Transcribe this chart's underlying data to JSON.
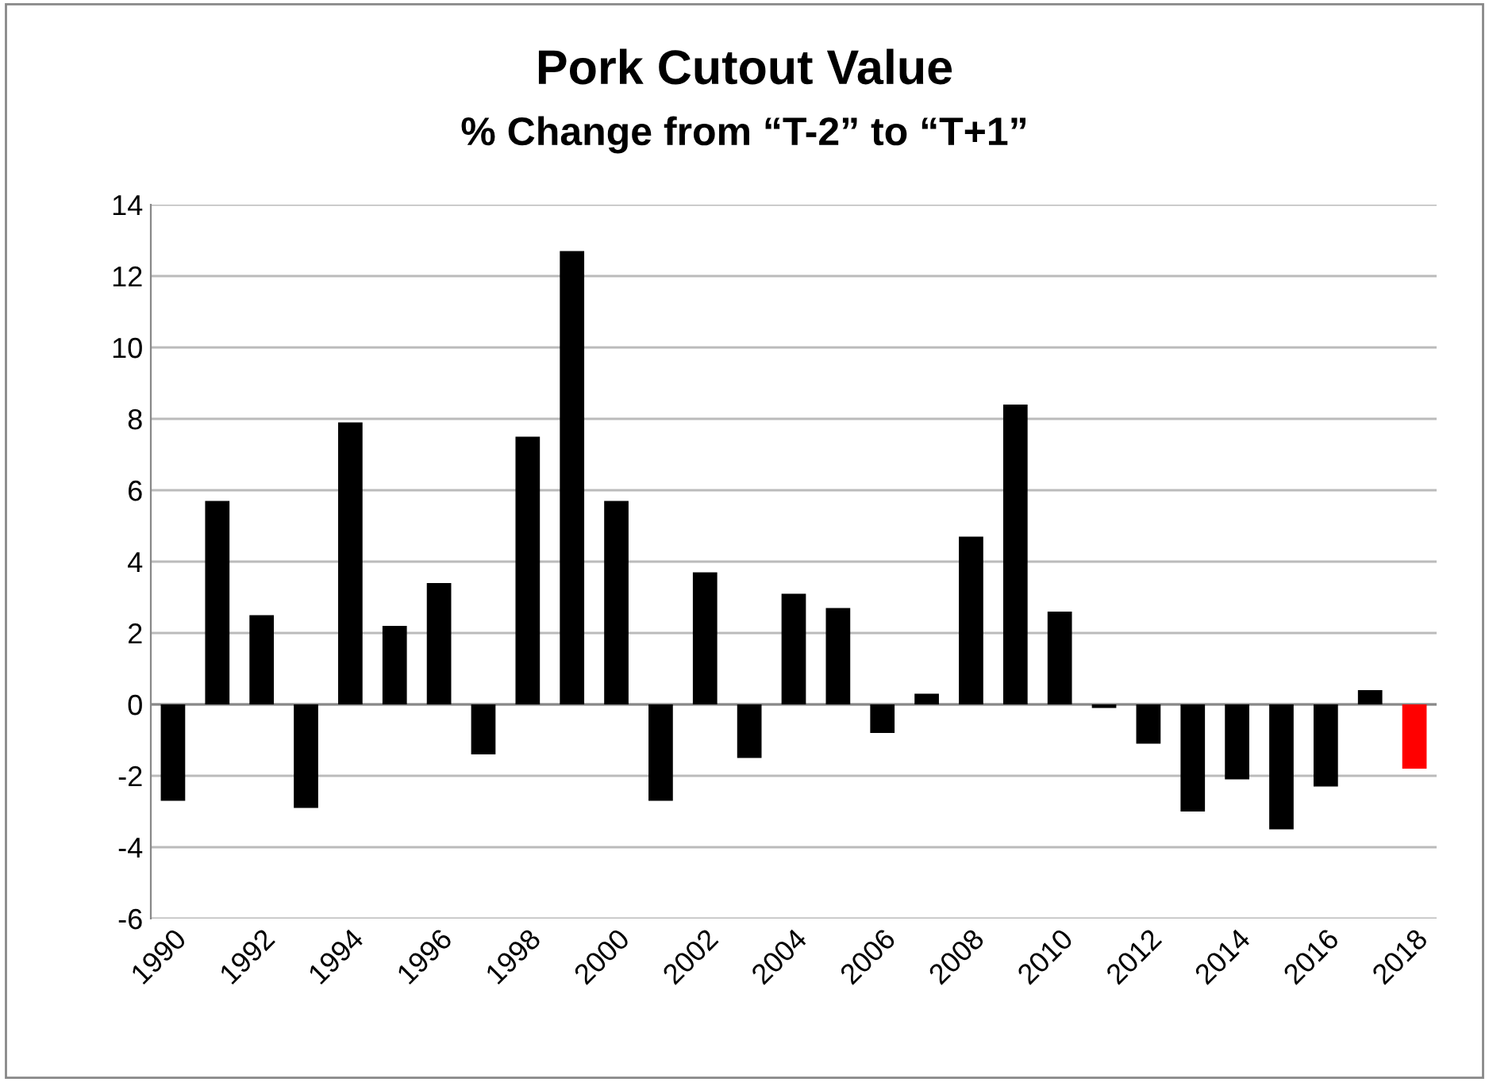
{
  "chart_data": {
    "type": "bar",
    "title": "Pork Cutout Value",
    "subtitle": "% Change from “T-2” to “T+1”",
    "categories": [
      "1990",
      null,
      "1992",
      null,
      "1994",
      null,
      "1996",
      null,
      "1998",
      null,
      "2000",
      null,
      "2002",
      null,
      "2004",
      null,
      "2006",
      null,
      "2008",
      null,
      "2010",
      null,
      "2012",
      null,
      "2014",
      null,
      "2016",
      null,
      "2018"
    ],
    "values": [
      -2.7,
      5.7,
      2.5,
      -2.9,
      7.9,
      2.2,
      3.4,
      -1.4,
      7.5,
      12.7,
      5.7,
      -2.7,
      3.7,
      -1.5,
      3.1,
      2.7,
      -0.8,
      0.3,
      4.7,
      8.4,
      2.6,
      -0.1,
      -1.1,
      -3.0,
      -2.1,
      -3.5,
      -2.3,
      0.4,
      -1.8
    ],
    "colors": [
      "#000000",
      "#000000",
      "#000000",
      "#000000",
      "#000000",
      "#000000",
      "#000000",
      "#000000",
      "#000000",
      "#000000",
      "#000000",
      "#000000",
      "#000000",
      "#000000",
      "#000000",
      "#000000",
      "#000000",
      "#000000",
      "#000000",
      "#000000",
      "#000000",
      "#000000",
      "#000000",
      "#000000",
      "#000000",
      "#000000",
      "#000000",
      "#000000",
      "#ff0000"
    ],
    "ylim": [
      -6,
      14
    ],
    "yticks": [
      -6,
      -4,
      -2,
      0,
      2,
      4,
      6,
      8,
      10,
      12,
      14
    ],
    "grid": "y",
    "legend": false
  }
}
